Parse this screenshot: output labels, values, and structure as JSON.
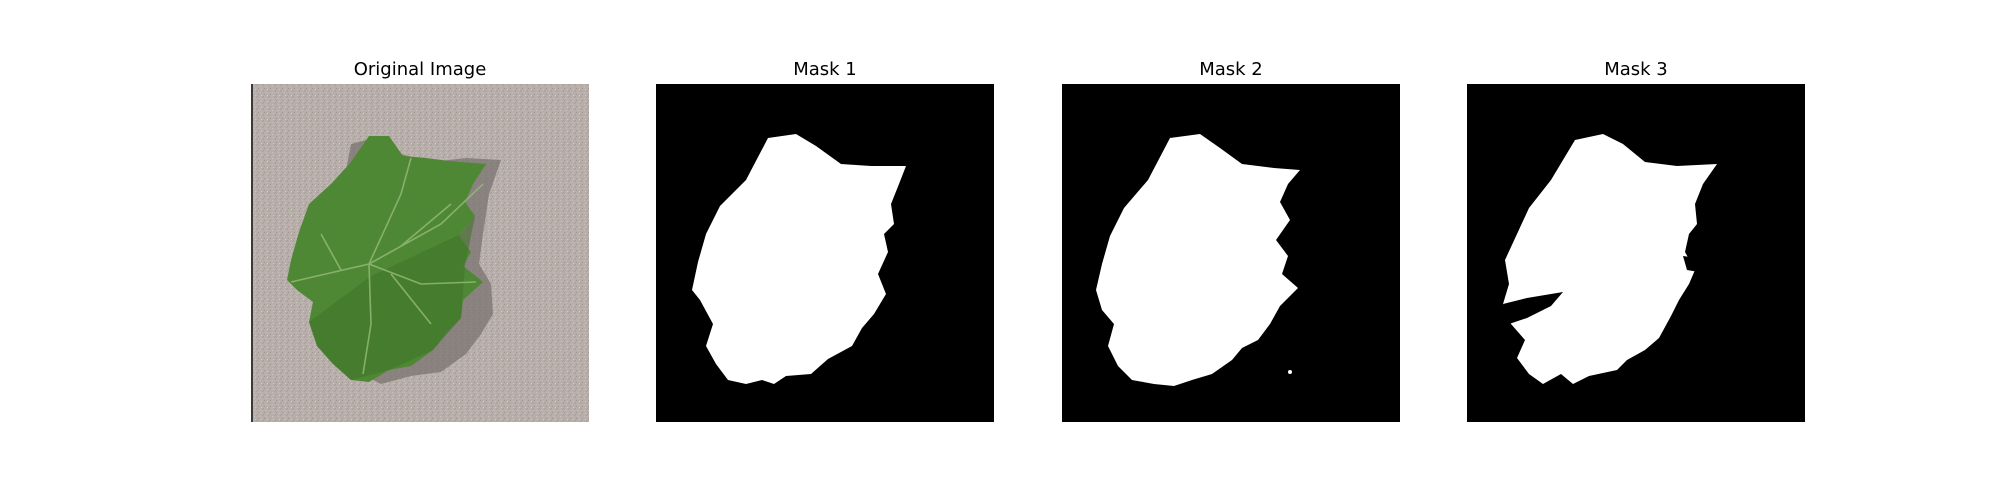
{
  "figure": {
    "panels": [
      {
        "title": "Original Image"
      },
      {
        "title": "Mask 1"
      },
      {
        "title": "Mask 2"
      },
      {
        "title": "Mask 3"
      }
    ]
  },
  "colors": {
    "background": "#ffffff",
    "mask_bg": "#000000",
    "mask_fg": "#ffffff",
    "photo_bg": "#b5aca8",
    "leaf": "#4f8a34",
    "leaf_dark": "#3b6e26",
    "leaf_vein": "#8fb36e",
    "shadow": "#6e6865"
  }
}
